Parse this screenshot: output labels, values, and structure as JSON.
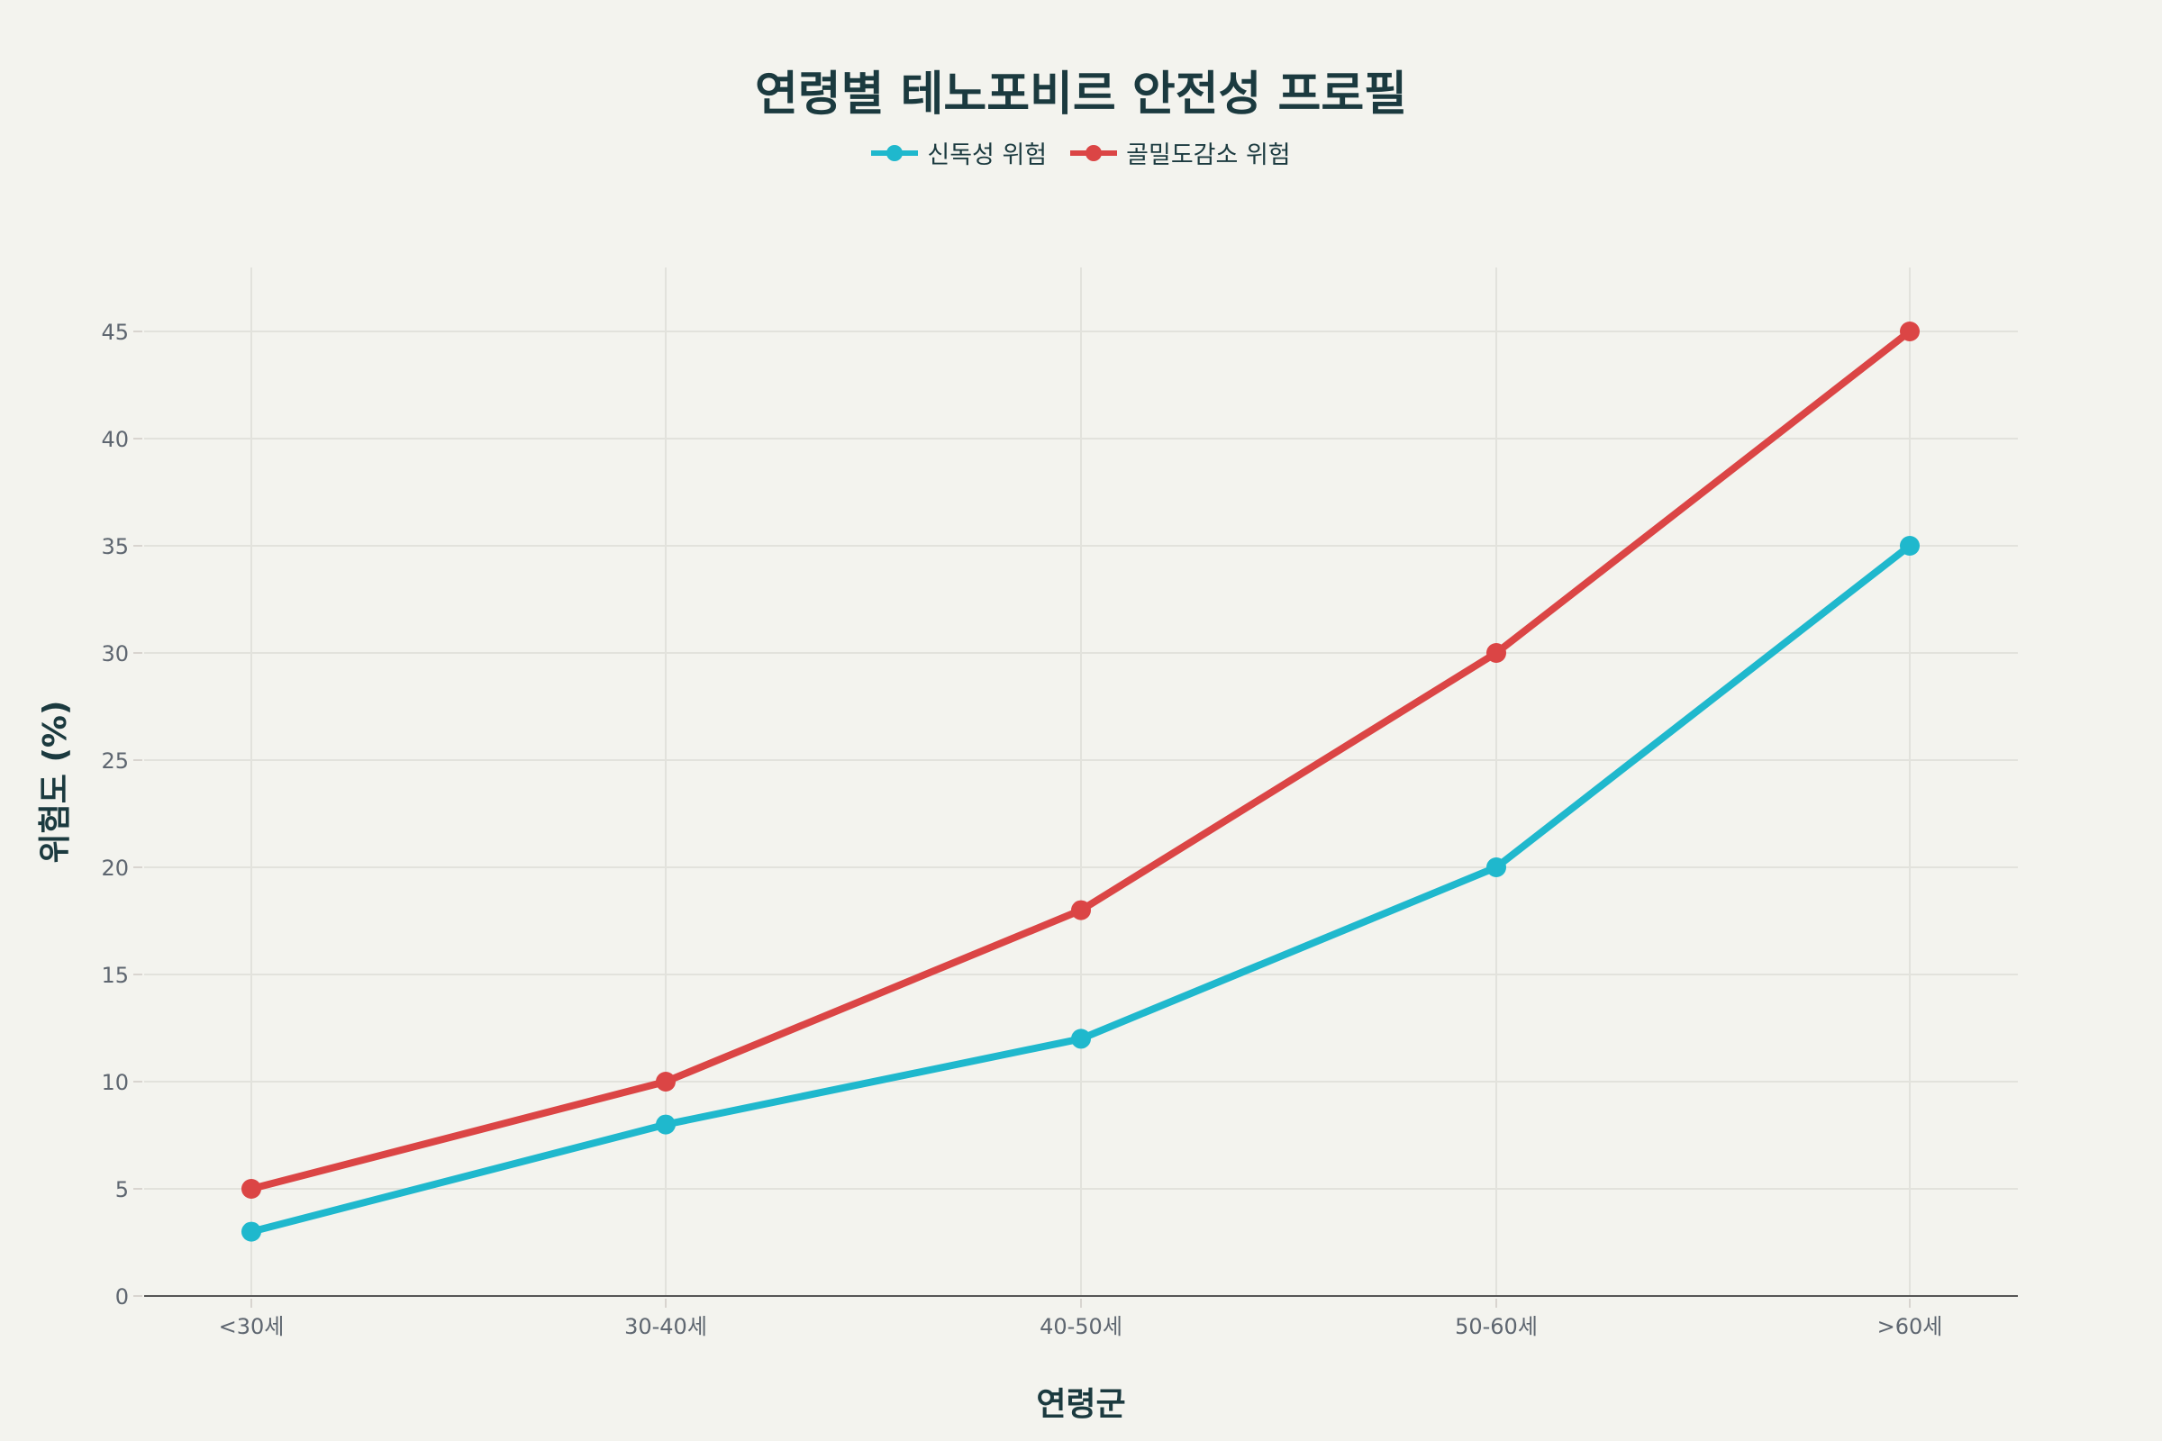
{
  "chart_data": {
    "type": "line",
    "title": "연령별 테노포비르 안전성 프로필",
    "xlabel": "연령군",
    "ylabel": "위험도 (%)",
    "categories": [
      "<30세",
      "30-40세",
      "40-50세",
      "50-60세",
      ">60세"
    ],
    "series": [
      {
        "name": "신독성 위험",
        "color": "#1fb8cd",
        "values": [
          3,
          8,
          12,
          20,
          35
        ]
      },
      {
        "name": "골밀도감소 위험",
        "color": "#db4545",
        "values": [
          5,
          10,
          18,
          30,
          45
        ]
      }
    ],
    "ylim": [
      0,
      48
    ],
    "yticks": [
      0,
      5,
      10,
      15,
      20,
      25,
      30,
      35,
      40,
      45
    ],
    "grid": true,
    "legend": "top-center"
  }
}
